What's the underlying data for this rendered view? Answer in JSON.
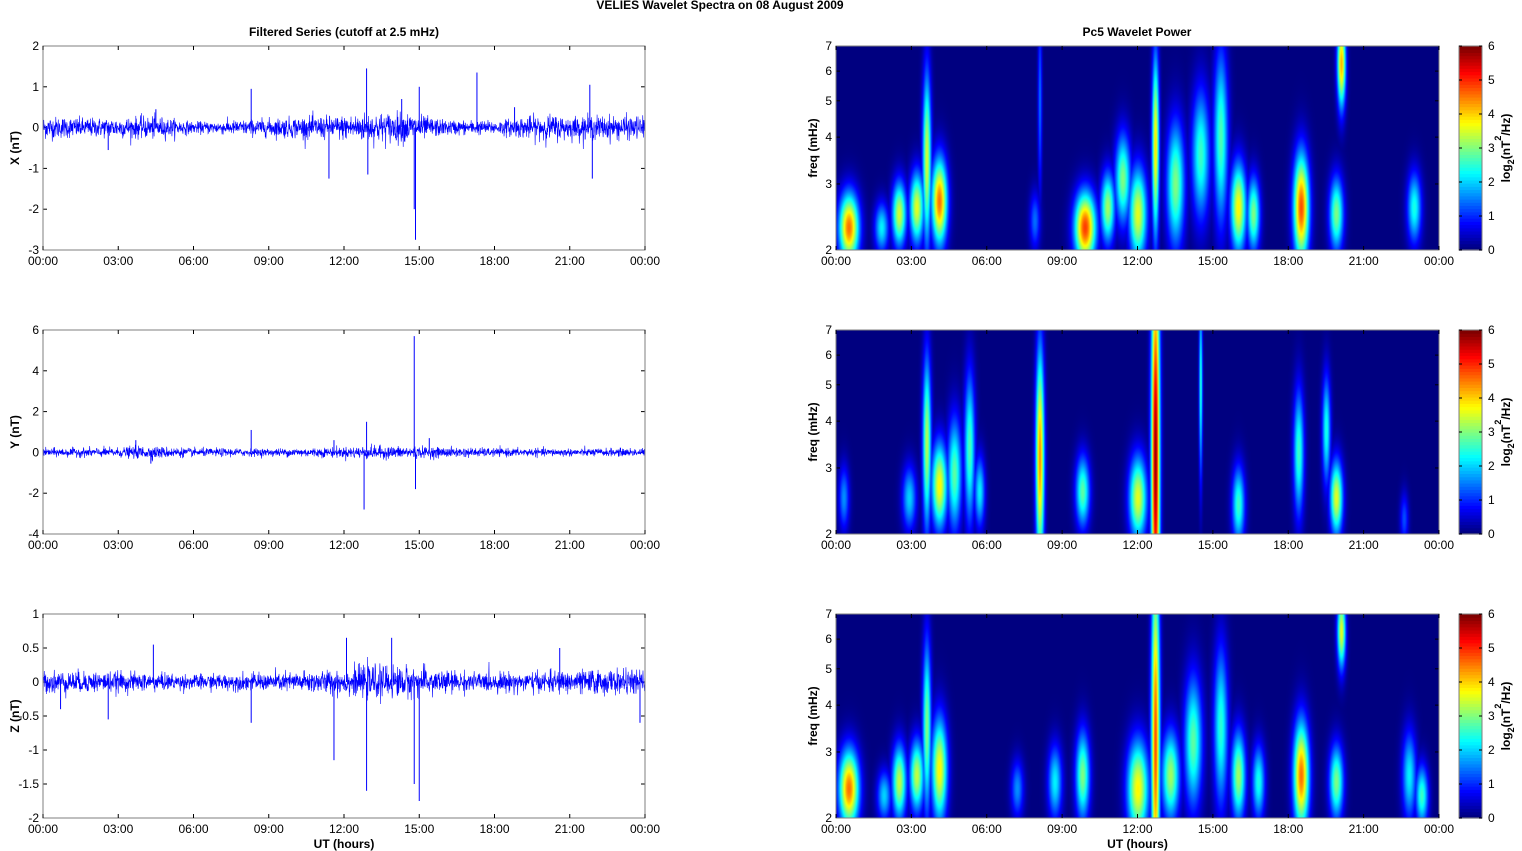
{
  "figure": {
    "suptitle": "VELIES Wavelet Spectra on 08 August    2009",
    "left_title": "Filtered Series (cutoff at 2.5 mHz)",
    "right_title": "Pc5 Wavelet Power"
  },
  "chart_data": [
    {
      "type": "line",
      "panel": "X",
      "ylabel": "X (nT)",
      "xlabel": "",
      "color": "#0000ff",
      "xlim": [
        "00:00",
        "24:00"
      ],
      "ylim": [
        -3,
        2
      ],
      "xticklabels": [
        "00:00",
        "03:00",
        "06:00",
        "09:00",
        "12:00",
        "15:00",
        "18:00",
        "21:00",
        "00:00"
      ],
      "yticks": [
        -3,
        -2,
        -1,
        0,
        1,
        2
      ],
      "noise_amplitude": [
        [
          0,
          0.3
        ],
        [
          2,
          0.25
        ],
        [
          4.5,
          0.3
        ],
        [
          6,
          0.15
        ],
        [
          8,
          0.2
        ],
        [
          10,
          0.28
        ],
        [
          12,
          0.32
        ],
        [
          13,
          0.4
        ],
        [
          14.5,
          0.4
        ],
        [
          16,
          0.2
        ],
        [
          18,
          0.18
        ],
        [
          20,
          0.35
        ],
        [
          21,
          0.3
        ],
        [
          22,
          0.32
        ],
        [
          24,
          0.3
        ]
      ],
      "spikes": [
        [
          2.6,
          -0.55
        ],
        [
          4.5,
          0.45
        ],
        [
          8.3,
          0.95
        ],
        [
          11.4,
          -1.25
        ],
        [
          12.9,
          1.45
        ],
        [
          12.95,
          -1.15
        ],
        [
          14.3,
          0.7
        ],
        [
          14.8,
          -2.0
        ],
        [
          14.85,
          -2.75
        ],
        [
          15.0,
          1.0
        ],
        [
          17.3,
          1.35
        ],
        [
          21.8,
          1.05
        ],
        [
          21.9,
          -1.25
        ],
        [
          18.8,
          0.5
        ]
      ]
    },
    {
      "type": "line",
      "panel": "Y",
      "ylabel": "Y (nT)",
      "xlabel": "",
      "color": "#0000ff",
      "xlim": [
        "00:00",
        "24:00"
      ],
      "ylim": [
        -4,
        6
      ],
      "xticklabels": [
        "00:00",
        "03:00",
        "06:00",
        "09:00",
        "12:00",
        "15:00",
        "18:00",
        "21:00",
        "00:00"
      ],
      "yticks": [
        -4,
        -2,
        0,
        2,
        4,
        6
      ],
      "noise_amplitude": [
        [
          0,
          0.22
        ],
        [
          3,
          0.25
        ],
        [
          4,
          0.35
        ],
        [
          6,
          0.22
        ],
        [
          9,
          0.2
        ],
        [
          12,
          0.28
        ],
        [
          13,
          0.35
        ],
        [
          15,
          0.3
        ],
        [
          18,
          0.22
        ],
        [
          21,
          0.2
        ],
        [
          24,
          0.22
        ]
      ],
      "spikes": [
        [
          3.7,
          0.6
        ],
        [
          4.3,
          -0.55
        ],
        [
          8.3,
          1.1
        ],
        [
          11.6,
          0.6
        ],
        [
          12.8,
          -2.8
        ],
        [
          12.9,
          1.5
        ],
        [
          14.8,
          5.7
        ],
        [
          14.85,
          -1.8
        ],
        [
          15.4,
          0.7
        ]
      ]
    },
    {
      "type": "line",
      "panel": "Z",
      "ylabel": "Z (nT)",
      "xlabel": "UT (hours)",
      "color": "#0000ff",
      "xlim": [
        "00:00",
        "24:00"
      ],
      "ylim": [
        -2,
        1
      ],
      "xticklabels": [
        "00:00",
        "03:00",
        "06:00",
        "09:00",
        "12:00",
        "15:00",
        "18:00",
        "21:00",
        "00:00"
      ],
      "yticks": [
        -2,
        -1.5,
        -1,
        -0.5,
        0,
        0.5,
        1
      ],
      "noise_amplitude": [
        [
          0,
          0.18
        ],
        [
          3,
          0.16
        ],
        [
          6,
          0.12
        ],
        [
          9,
          0.14
        ],
        [
          12,
          0.2
        ],
        [
          13,
          0.26
        ],
        [
          14.5,
          0.25
        ],
        [
          17,
          0.15
        ],
        [
          20,
          0.16
        ],
        [
          22,
          0.2
        ],
        [
          24,
          0.18
        ]
      ],
      "spikes": [
        [
          0.7,
          -0.4
        ],
        [
          2.6,
          -0.55
        ],
        [
          4.4,
          0.55
        ],
        [
          8.3,
          -0.6
        ],
        [
          11.6,
          -1.15
        ],
        [
          12.9,
          -1.6
        ],
        [
          12.1,
          0.65
        ],
        [
          13.9,
          0.65
        ],
        [
          14.8,
          -1.5
        ],
        [
          15.0,
          -1.75
        ],
        [
          20.6,
          0.5
        ],
        [
          23.8,
          -0.6
        ]
      ]
    },
    {
      "type": "heatmap",
      "panel": "X",
      "ylabel": "freq (mHz)",
      "xlabel": "",
      "xlim": [
        "00:00",
        "24:00"
      ],
      "ylim": [
        2,
        7
      ],
      "yscale": "log",
      "yticks": [
        2,
        3,
        4,
        5,
        6,
        7
      ],
      "xticklabels": [
        "00:00",
        "03:00",
        "06:00",
        "09:00",
        "12:00",
        "15:00",
        "18:00",
        "21:00",
        "00:00"
      ],
      "colorbar": {
        "label": "log",
        "label_sub": "2",
        "label_tail": "(nT",
        "label_sup": "2",
        "label_end": "/Hz)",
        "ticks": [
          0,
          1,
          2,
          3,
          4,
          5,
          6
        ],
        "clim": [
          0,
          6
        ]
      },
      "background": "#00008f",
      "blobs": [
        {
          "t": 0.5,
          "f": 2.3,
          "amp": 4.6,
          "w": 0.28,
          "h": 0.34
        },
        {
          "t": 1.8,
          "f": 2.3,
          "amp": 2.2,
          "w": 0.2,
          "h": 0.25
        },
        {
          "t": 2.5,
          "f": 2.5,
          "amp": 3.5,
          "w": 0.2,
          "h": 0.35
        },
        {
          "t": 3.2,
          "f": 2.6,
          "amp": 3.6,
          "w": 0.2,
          "h": 0.4
        },
        {
          "t": 3.6,
          "f": 3.5,
          "amp": 3.5,
          "w": 0.12,
          "h": 1.3
        },
        {
          "t": 4.1,
          "f": 2.7,
          "amp": 4.6,
          "w": 0.22,
          "h": 0.5
        },
        {
          "t": 7.9,
          "f": 2.4,
          "amp": 1.4,
          "w": 0.15,
          "h": 0.3
        },
        {
          "t": 8.1,
          "f": 5.0,
          "amp": 1.4,
          "w": 0.06,
          "h": 2.0
        },
        {
          "t": 9.9,
          "f": 2.3,
          "amp": 4.9,
          "w": 0.3,
          "h": 0.35
        },
        {
          "t": 10.8,
          "f": 2.6,
          "amp": 3.2,
          "w": 0.2,
          "h": 0.4
        },
        {
          "t": 11.4,
          "f": 3.1,
          "amp": 3.0,
          "w": 0.22,
          "h": 0.6
        },
        {
          "t": 12.0,
          "f": 2.5,
          "amp": 3.6,
          "w": 0.25,
          "h": 0.5
        },
        {
          "t": 12.7,
          "f": 3.8,
          "amp": 3.9,
          "w": 0.1,
          "h": 1.5
        },
        {
          "t": 13.5,
          "f": 3.0,
          "amp": 3.0,
          "w": 0.25,
          "h": 0.8
        },
        {
          "t": 14.5,
          "f": 3.6,
          "amp": 2.6,
          "w": 0.25,
          "h": 1.0
        },
        {
          "t": 15.3,
          "f": 4.0,
          "amp": 2.7,
          "w": 0.2,
          "h": 1.5
        },
        {
          "t": 16.0,
          "f": 2.6,
          "amp": 3.8,
          "w": 0.22,
          "h": 0.5
        },
        {
          "t": 16.6,
          "f": 2.5,
          "amp": 3.0,
          "w": 0.18,
          "h": 0.4
        },
        {
          "t": 18.5,
          "f": 2.6,
          "amp": 4.8,
          "w": 0.22,
          "h": 0.6
        },
        {
          "t": 19.9,
          "f": 2.5,
          "amp": 3.0,
          "w": 0.2,
          "h": 0.4
        },
        {
          "t": 20.1,
          "f": 6.3,
          "amp": 4.2,
          "w": 0.12,
          "h": 1.2
        },
        {
          "t": 23.0,
          "f": 2.6,
          "amp": 2.4,
          "w": 0.2,
          "h": 0.4
        }
      ]
    },
    {
      "type": "heatmap",
      "panel": "Y",
      "ylabel": "freq (mHz)",
      "xlabel": "",
      "xlim": [
        "00:00",
        "24:00"
      ],
      "ylim": [
        2,
        7
      ],
      "yscale": "log",
      "yticks": [
        2,
        3,
        4,
        5,
        6,
        7
      ],
      "xticklabels": [
        "00:00",
        "03:00",
        "06:00",
        "09:00",
        "12:00",
        "15:00",
        "18:00",
        "21:00",
        "00:00"
      ],
      "colorbar": {
        "label": "log",
        "label_sub": "2",
        "label_tail": "(nT",
        "label_sup": "2",
        "label_end": "/Hz)",
        "ticks": [
          0,
          1,
          2,
          3,
          4,
          5,
          6
        ],
        "clim": [
          0,
          6
        ]
      },
      "background": "#00008f",
      "blobs": [
        {
          "t": 0.3,
          "f": 2.5,
          "amp": 1.6,
          "w": 0.15,
          "h": 0.35
        },
        {
          "t": 2.9,
          "f": 2.5,
          "amp": 2.0,
          "w": 0.2,
          "h": 0.35
        },
        {
          "t": 3.6,
          "f": 3.5,
          "amp": 3.3,
          "w": 0.12,
          "h": 1.3
        },
        {
          "t": 4.1,
          "f": 2.7,
          "amp": 3.8,
          "w": 0.22,
          "h": 0.5
        },
        {
          "t": 4.7,
          "f": 2.9,
          "amp": 2.8,
          "w": 0.2,
          "h": 0.7
        },
        {
          "t": 5.3,
          "f": 3.4,
          "amp": 2.7,
          "w": 0.15,
          "h": 1.1
        },
        {
          "t": 5.7,
          "f": 2.6,
          "amp": 2.2,
          "w": 0.15,
          "h": 0.4
        },
        {
          "t": 8.1,
          "f": 3.2,
          "amp": 4.4,
          "w": 0.12,
          "h": 1.5
        },
        {
          "t": 9.8,
          "f": 2.6,
          "amp": 2.8,
          "w": 0.2,
          "h": 0.4
        },
        {
          "t": 12.0,
          "f": 2.5,
          "amp": 3.6,
          "w": 0.25,
          "h": 0.45
        },
        {
          "t": 12.7,
          "f": 3.2,
          "amp": 5.9,
          "w": 0.12,
          "h": 3.0
        },
        {
          "t": 14.5,
          "f": 5.0,
          "amp": 2.5,
          "w": 0.05,
          "h": 2.0
        },
        {
          "t": 16.0,
          "f": 2.4,
          "amp": 2.6,
          "w": 0.18,
          "h": 0.4
        },
        {
          "t": 18.4,
          "f": 3.3,
          "amp": 2.6,
          "w": 0.15,
          "h": 0.9
        },
        {
          "t": 19.9,
          "f": 2.5,
          "amp": 3.6,
          "w": 0.18,
          "h": 0.4
        },
        {
          "t": 19.5,
          "f": 3.8,
          "amp": 2.4,
          "w": 0.12,
          "h": 0.9
        },
        {
          "t": 22.6,
          "f": 2.2,
          "amp": 1.2,
          "w": 0.12,
          "h": 0.25
        }
      ]
    },
    {
      "type": "heatmap",
      "panel": "Z",
      "ylabel": "freq (mHz)",
      "xlabel": "UT (hours)",
      "xlim": [
        "00:00",
        "24:00"
      ],
      "ylim": [
        2,
        7
      ],
      "yscale": "log",
      "yticks": [
        2,
        3,
        4,
        5,
        6,
        7
      ],
      "xticklabels": [
        "00:00",
        "03:00",
        "06:00",
        "09:00",
        "12:00",
        "15:00",
        "18:00",
        "21:00",
        "00:00"
      ],
      "colorbar": {
        "label": "log",
        "label_sub": "2",
        "label_tail": "(nT",
        "label_sup": "2",
        "label_end": "/Hz)",
        "ticks": [
          0,
          1,
          2,
          3,
          4,
          5,
          6
        ],
        "clim": [
          0,
          6
        ]
      },
      "background": "#00008f",
      "blobs": [
        {
          "t": 0.5,
          "f": 2.4,
          "amp": 4.6,
          "w": 0.28,
          "h": 0.4
        },
        {
          "t": 1.9,
          "f": 2.3,
          "amp": 2.0,
          "w": 0.2,
          "h": 0.25
        },
        {
          "t": 2.5,
          "f": 2.5,
          "amp": 3.4,
          "w": 0.2,
          "h": 0.4
        },
        {
          "t": 3.2,
          "f": 2.6,
          "amp": 3.4,
          "w": 0.2,
          "h": 0.4
        },
        {
          "t": 3.6,
          "f": 3.5,
          "amp": 3.0,
          "w": 0.12,
          "h": 1.3
        },
        {
          "t": 4.1,
          "f": 2.7,
          "amp": 3.8,
          "w": 0.22,
          "h": 0.6
        },
        {
          "t": 7.2,
          "f": 2.4,
          "amp": 1.6,
          "w": 0.18,
          "h": 0.3
        },
        {
          "t": 8.7,
          "f": 2.5,
          "amp": 2.2,
          "w": 0.2,
          "h": 0.4
        },
        {
          "t": 9.8,
          "f": 2.6,
          "amp": 3.0,
          "w": 0.2,
          "h": 0.5
        },
        {
          "t": 12.0,
          "f": 2.4,
          "amp": 3.8,
          "w": 0.3,
          "h": 0.5
        },
        {
          "t": 12.7,
          "f": 3.2,
          "amp": 4.8,
          "w": 0.12,
          "h": 2.5
        },
        {
          "t": 13.3,
          "f": 2.6,
          "amp": 3.2,
          "w": 0.25,
          "h": 0.5
        },
        {
          "t": 14.2,
          "f": 3.2,
          "amp": 2.8,
          "w": 0.25,
          "h": 0.9
        },
        {
          "t": 15.3,
          "f": 3.5,
          "amp": 2.5,
          "w": 0.2,
          "h": 1.2
        },
        {
          "t": 16.0,
          "f": 2.6,
          "amp": 3.2,
          "w": 0.2,
          "h": 0.5
        },
        {
          "t": 16.8,
          "f": 2.5,
          "amp": 2.4,
          "w": 0.18,
          "h": 0.4
        },
        {
          "t": 18.5,
          "f": 2.6,
          "amp": 4.6,
          "w": 0.22,
          "h": 0.6
        },
        {
          "t": 19.9,
          "f": 2.5,
          "amp": 3.0,
          "w": 0.2,
          "h": 0.4
        },
        {
          "t": 20.1,
          "f": 6.3,
          "amp": 3.6,
          "w": 0.12,
          "h": 1.0
        },
        {
          "t": 22.8,
          "f": 2.6,
          "amp": 2.2,
          "w": 0.2,
          "h": 0.5
        },
        {
          "t": 23.3,
          "f": 2.3,
          "amp": 2.6,
          "w": 0.18,
          "h": 0.3
        }
      ]
    }
  ]
}
